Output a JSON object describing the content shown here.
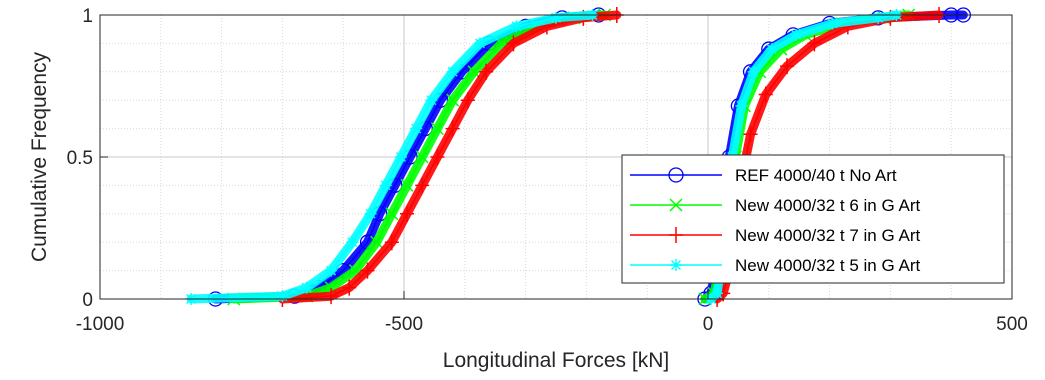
{
  "chart_data": {
    "type": "line",
    "xlabel": "Longitudinal Forces [kN]",
    "ylabel": "Cumulative Frequency",
    "xlim": [
      -1000,
      500
    ],
    "ylim": [
      0,
      1
    ],
    "x_ticks": [
      -1000,
      -500,
      0,
      500
    ],
    "x_tick_labels": [
      "-1000",
      "-500",
      "0",
      "500"
    ],
    "y_ticks": [
      0,
      0.5,
      1
    ],
    "y_tick_labels": [
      "0",
      "0.5",
      "1"
    ],
    "grid": true,
    "minor_grid": true,
    "legend_position": "bottom-right",
    "series": [
      {
        "name": "REF 4000/40 t No Art",
        "color": "#0000ff",
        "marker": "circle",
        "negative_branch": [
          [
            -810,
            0
          ],
          [
            -680,
            0.01
          ],
          [
            -640,
            0.04
          ],
          [
            -600,
            0.1
          ],
          [
            -560,
            0.2
          ],
          [
            -540,
            0.3
          ],
          [
            -515,
            0.4
          ],
          [
            -490,
            0.5
          ],
          [
            -465,
            0.6
          ],
          [
            -440,
            0.7
          ],
          [
            -405,
            0.8
          ],
          [
            -360,
            0.9
          ],
          [
            -300,
            0.96
          ],
          [
            -240,
            0.99
          ],
          [
            -180,
            1.0
          ]
        ],
        "positive_branch": [
          [
            -5,
            0
          ],
          [
            5,
            0.02
          ],
          [
            15,
            0.12
          ],
          [
            25,
            0.3
          ],
          [
            35,
            0.5
          ],
          [
            50,
            0.68
          ],
          [
            70,
            0.8
          ],
          [
            100,
            0.88
          ],
          [
            140,
            0.93
          ],
          [
            200,
            0.97
          ],
          [
            280,
            0.99
          ],
          [
            400,
            1.0
          ],
          [
            420,
            1.0
          ]
        ]
      },
      {
        "name": "New 4000/32 t 6 in G Art",
        "color": "#00ff00",
        "marker": "x",
        "negative_branch": [
          [
            -780,
            0
          ],
          [
            -660,
            0.01
          ],
          [
            -620,
            0.04
          ],
          [
            -580,
            0.1
          ],
          [
            -545,
            0.2
          ],
          [
            -520,
            0.3
          ],
          [
            -495,
            0.4
          ],
          [
            -470,
            0.5
          ],
          [
            -445,
            0.6
          ],
          [
            -420,
            0.7
          ],
          [
            -385,
            0.8
          ],
          [
            -340,
            0.9
          ],
          [
            -280,
            0.96
          ],
          [
            -220,
            0.99
          ],
          [
            -170,
            1.0
          ]
        ],
        "positive_branch": [
          [
            -5,
            0
          ],
          [
            10,
            0.02
          ],
          [
            20,
            0.12
          ],
          [
            30,
            0.3
          ],
          [
            45,
            0.5
          ],
          [
            60,
            0.68
          ],
          [
            85,
            0.8
          ],
          [
            120,
            0.88
          ],
          [
            160,
            0.93
          ],
          [
            220,
            0.97
          ],
          [
            290,
            0.99
          ],
          [
            330,
            1.0
          ]
        ]
      },
      {
        "name": "New 4000/32 t 7 in G Art",
        "color": "#ff0000",
        "marker": "plus",
        "negative_branch": [
          [
            -700,
            0
          ],
          [
            -620,
            0.01
          ],
          [
            -590,
            0.04
          ],
          [
            -560,
            0.1
          ],
          [
            -520,
            0.2
          ],
          [
            -495,
            0.3
          ],
          [
            -470,
            0.4
          ],
          [
            -445,
            0.5
          ],
          [
            -420,
            0.6
          ],
          [
            -395,
            0.7
          ],
          [
            -365,
            0.8
          ],
          [
            -320,
            0.9
          ],
          [
            -265,
            0.96
          ],
          [
            -205,
            0.99
          ],
          [
            -150,
            1.0
          ]
        ],
        "positive_branch": [
          [
            15,
            0
          ],
          [
            25,
            0.02
          ],
          [
            35,
            0.1
          ],
          [
            45,
            0.25
          ],
          [
            55,
            0.42
          ],
          [
            70,
            0.58
          ],
          [
            95,
            0.72
          ],
          [
            130,
            0.82
          ],
          [
            175,
            0.9
          ],
          [
            230,
            0.96
          ],
          [
            300,
            0.99
          ],
          [
            380,
            1.0
          ]
        ]
      },
      {
        "name": "New 4000/32 t 5 in G Art",
        "color": "#00ffff",
        "marker": "asterisk",
        "negative_branch": [
          [
            -850,
            0
          ],
          [
            -700,
            0.01
          ],
          [
            -660,
            0.04
          ],
          [
            -620,
            0.1
          ],
          [
            -585,
            0.2
          ],
          [
            -555,
            0.3
          ],
          [
            -530,
            0.4
          ],
          [
            -505,
            0.5
          ],
          [
            -480,
            0.6
          ],
          [
            -455,
            0.7
          ],
          [
            -420,
            0.8
          ],
          [
            -375,
            0.9
          ],
          [
            -315,
            0.96
          ],
          [
            -250,
            0.99
          ],
          [
            -190,
            1.0
          ]
        ],
        "positive_branch": [
          [
            5,
            0
          ],
          [
            15,
            0.02
          ],
          [
            22,
            0.12
          ],
          [
            30,
            0.3
          ],
          [
            40,
            0.5
          ],
          [
            55,
            0.68
          ],
          [
            75,
            0.8
          ],
          [
            105,
            0.88
          ],
          [
            145,
            0.93
          ],
          [
            205,
            0.97
          ],
          [
            280,
            0.99
          ],
          [
            310,
            1.0
          ]
        ]
      }
    ]
  }
}
